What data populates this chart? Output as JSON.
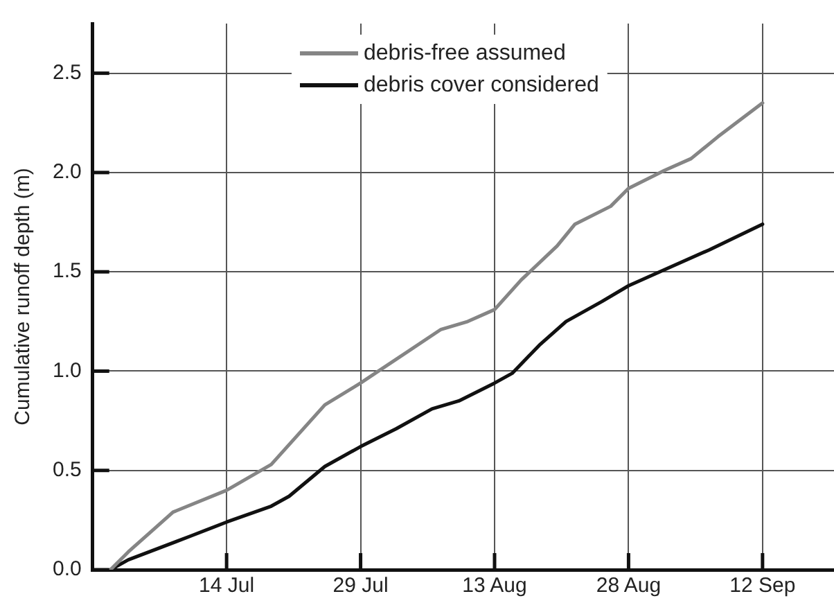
{
  "chart_data": {
    "type": "line",
    "ylabel": "Cumulative runoff depth (m)",
    "xlim": [
      "--06-29",
      "--09-20"
    ],
    "xticks": [
      {
        "value": "--07-14",
        "label": "14 Jul"
      },
      {
        "value": "--07-29",
        "label": "29 Jul"
      },
      {
        "value": "--08-13",
        "label": "13 Aug"
      },
      {
        "value": "--08-28",
        "label": "28 Aug"
      },
      {
        "value": "--09-12",
        "label": "12 Sep"
      }
    ],
    "ylim": [
      0,
      2.75
    ],
    "yticks": [
      {
        "value": 0,
        "label": "0.0"
      },
      {
        "value": 0.5,
        "label": "0.5"
      },
      {
        "value": 1,
        "label": "1.0"
      },
      {
        "value": 1.5,
        "label": "1.5"
      },
      {
        "value": 2,
        "label": "2.0"
      },
      {
        "value": 2.5,
        "label": "2.5"
      }
    ],
    "grid": true,
    "legend": "top",
    "marker": "none",
    "line_style": "solid",
    "series": [
      {
        "name": "debris-free assumed",
        "color": "#858585",
        "x": [
          "--07-01",
          "--07-03",
          "--07-08",
          "--07-14",
          "--07-19",
          "--07-25",
          "--07-29",
          "--07-31",
          "--08-07",
          "--08-10",
          "--08-13",
          "--08-16",
          "--08-20",
          "--08-22",
          "--08-26",
          "--08-28",
          "--09-01",
          "--09-04",
          "--09-07",
          "--09-12"
        ],
        "values": [
          0,
          0.09,
          0.29,
          0.4,
          0.53,
          0.83,
          0.94,
          1.0,
          1.21,
          1.25,
          1.31,
          1.46,
          1.63,
          1.74,
          1.83,
          1.92,
          2.01,
          2.07,
          2.18,
          2.35
        ]
      },
      {
        "name": "debris cover considered",
        "color": "#111111",
        "x": [
          "--07-01",
          "--07-03",
          "--07-10",
          "--07-14",
          "--07-19",
          "--07-21",
          "--07-25",
          "--07-29",
          "--08-02",
          "--08-06",
          "--08-09",
          "--08-13",
          "--08-15",
          "--08-18",
          "--08-21",
          "--08-25",
          "--08-28",
          "--09-01",
          "--09-06",
          "--09-12"
        ],
        "values": [
          0,
          0.05,
          0.17,
          0.24,
          0.32,
          0.37,
          0.52,
          0.62,
          0.71,
          0.81,
          0.85,
          0.94,
          0.99,
          1.13,
          1.25,
          1.35,
          1.43,
          1.51,
          1.61,
          1.74
        ]
      }
    ]
  }
}
